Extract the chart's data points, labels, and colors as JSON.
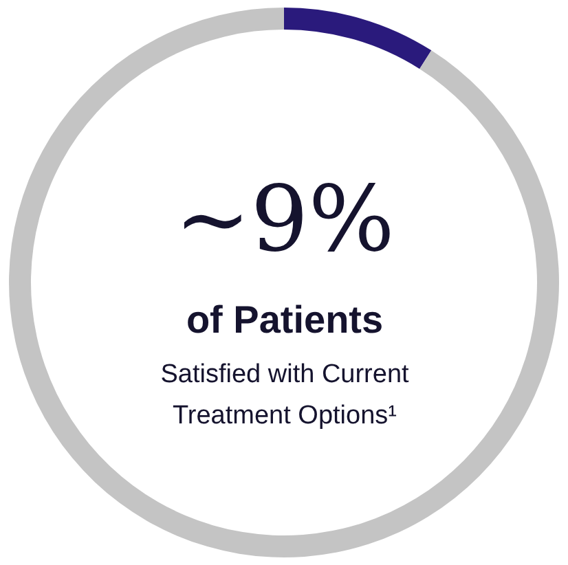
{
  "chart_data": {
    "type": "donut",
    "categories": [
      null,
      null
    ],
    "values": [
      9,
      91
    ],
    "colors": [
      "#2a1a7c",
      "#c4c4c4"
    ],
    "annotations": [
      "~9%",
      "of Patients",
      "Satisfied with Current",
      "Treatment Options¹"
    ]
  }
}
